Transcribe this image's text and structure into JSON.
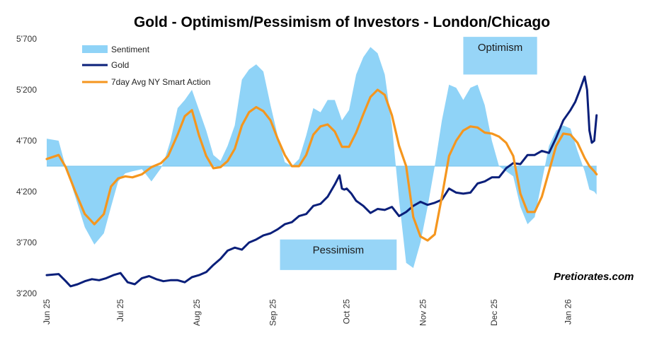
{
  "colors": {
    "sentiment": "#8fd3f7",
    "gold": "#0a1f7a",
    "smart_action": "#f5961e",
    "box": "#97d5f7"
  },
  "chart_data": {
    "type": "line",
    "title": "Gold - Optimism/Pessimism of Investors - London/Chicago",
    "xlabel": "",
    "ylabel": "",
    "ylim": [
      3200,
      5700
    ],
    "yticks": [
      "3'200",
      "3'700",
      "4'200",
      "4'700",
      "5'200",
      "5'700"
    ],
    "ytick_values": [
      3200,
      3700,
      4200,
      4700,
      5200,
      5700
    ],
    "xlim": [
      0,
      240
    ],
    "xticks": [
      "Jun 25",
      "Jul 25",
      "Aug 25",
      "Sep 25",
      "Oct 25",
      "Nov 25",
      "Dec 25",
      "Jan 26"
    ],
    "xtick_values": [
      0,
      31,
      63,
      95,
      126,
      158,
      188,
      219
    ],
    "baseline": 4450,
    "legend": [
      "Sentiment",
      "Gold",
      "7day Avg NY Smart Action"
    ],
    "legend_position": "top-left",
    "series": [
      {
        "name": "Sentiment",
        "kind": "area",
        "x": [
          0,
          5,
          8,
          12,
          16,
          20,
          24,
          27,
          30,
          33,
          36,
          40,
          44,
          48,
          50,
          52,
          55,
          58,
          61,
          64,
          67,
          70,
          73,
          76,
          79,
          82,
          85,
          88,
          91,
          94,
          97,
          100,
          103,
          106,
          109,
          112,
          115,
          118,
          121,
          124,
          127,
          130,
          133,
          136,
          139,
          142,
          145,
          148,
          151,
          154,
          157,
          160,
          163,
          166,
          169,
          172,
          175,
          178,
          181,
          184,
          187,
          190,
          193,
          196,
          199,
          202,
          205,
          208,
          211,
          214,
          217,
          220,
          223,
          226,
          228,
          230,
          231
        ],
        "values": [
          4720,
          4700,
          4440,
          4150,
          3850,
          3680,
          3790,
          4050,
          4300,
          4380,
          4400,
          4420,
          4300,
          4430,
          4550,
          4700,
          5020,
          5100,
          5200,
          5000,
          4800,
          4560,
          4500,
          4650,
          4850,
          5300,
          5400,
          5450,
          5380,
          5050,
          4750,
          4490,
          4450,
          4520,
          4750,
          5020,
          4980,
          5100,
          5100,
          4900,
          5000,
          5350,
          5520,
          5620,
          5560,
          5350,
          4850,
          4120,
          3500,
          3450,
          3700,
          4050,
          4450,
          4900,
          5250,
          5220,
          5100,
          5220,
          5250,
          5050,
          4700,
          4450,
          4400,
          4350,
          4050,
          3880,
          3950,
          4300,
          4650,
          4800,
          4850,
          4820,
          4600,
          4400,
          4220,
          4200,
          4170
        ]
      },
      {
        "name": "Gold",
        "kind": "line",
        "x": [
          0,
          5,
          8,
          10,
          13,
          16,
          19,
          22,
          25,
          28,
          31,
          34,
          37,
          40,
          43,
          46,
          49,
          52,
          55,
          58,
          61,
          64,
          67,
          70,
          73,
          76,
          79,
          82,
          85,
          88,
          91,
          94,
          97,
          100,
          103,
          106,
          109,
          112,
          115,
          118,
          121,
          123,
          124,
          125,
          126,
          128,
          130,
          133,
          136,
          139,
          142,
          145,
          148,
          151,
          154,
          157,
          160,
          163,
          166,
          169,
          172,
          175,
          178,
          181,
          184,
          187,
          190,
          193,
          196,
          199,
          202,
          205,
          208,
          211,
          214,
          217,
          220,
          222,
          224,
          226,
          227,
          228,
          229,
          230,
          231
        ],
        "values": [
          3380,
          3390,
          3320,
          3270,
          3290,
          3320,
          3340,
          3330,
          3350,
          3380,
          3400,
          3310,
          3290,
          3350,
          3370,
          3340,
          3320,
          3330,
          3330,
          3310,
          3360,
          3380,
          3410,
          3480,
          3540,
          3620,
          3650,
          3630,
          3700,
          3730,
          3770,
          3790,
          3830,
          3880,
          3900,
          3960,
          3980,
          4060,
          4080,
          4150,
          4270,
          4360,
          4230,
          4220,
          4230,
          4180,
          4110,
          4060,
          3990,
          4030,
          4020,
          4050,
          3960,
          4000,
          4060,
          4100,
          4070,
          4090,
          4120,
          4230,
          4190,
          4180,
          4190,
          4280,
          4300,
          4340,
          4340,
          4430,
          4480,
          4470,
          4560,
          4560,
          4600,
          4580,
          4730,
          4900,
          5000,
          5080,
          5200,
          5330,
          5200,
          4800,
          4680,
          4700,
          4950
        ]
      },
      {
        "name": "7day Avg NY Smart Action",
        "kind": "line",
        "x": [
          0,
          5,
          8,
          12,
          16,
          20,
          24,
          27,
          30,
          33,
          36,
          40,
          44,
          48,
          51,
          55,
          58,
          61,
          64,
          67,
          70,
          73,
          76,
          79,
          82,
          85,
          88,
          91,
          94,
          97,
          100,
          103,
          106,
          109,
          112,
          115,
          118,
          121,
          124,
          127,
          130,
          133,
          136,
          139,
          142,
          145,
          148,
          151,
          154,
          157,
          160,
          163,
          166,
          169,
          172,
          175,
          178,
          181,
          184,
          187,
          190,
          193,
          196,
          199,
          202,
          205,
          208,
          211,
          214,
          217,
          220,
          223,
          226,
          228,
          230,
          231
        ],
        "values": [
          4520,
          4560,
          4440,
          4200,
          3980,
          3880,
          3980,
          4250,
          4330,
          4350,
          4340,
          4370,
          4440,
          4480,
          4550,
          4760,
          4940,
          5000,
          4750,
          4550,
          4430,
          4440,
          4500,
          4620,
          4850,
          4980,
          5030,
          4990,
          4900,
          4720,
          4560,
          4450,
          4450,
          4560,
          4760,
          4840,
          4860,
          4790,
          4640,
          4640,
          4780,
          4960,
          5130,
          5200,
          5150,
          4950,
          4650,
          4450,
          3950,
          3760,
          3720,
          3780,
          4150,
          4550,
          4700,
          4800,
          4840,
          4830,
          4780,
          4770,
          4740,
          4680,
          4550,
          4180,
          4000,
          4000,
          4150,
          4400,
          4650,
          4770,
          4760,
          4680,
          4530,
          4450,
          4400,
          4370
        ]
      }
    ],
    "annotations": [
      {
        "text": "Optimism",
        "x_range": [
          175,
          206
        ],
        "y_range": [
          5350,
          5720
        ]
      },
      {
        "text": "Pessimism",
        "x_range": [
          98,
          147
        ],
        "y_range": [
          3430,
          3730
        ]
      }
    ],
    "watermark": "Pretiorates.com"
  }
}
